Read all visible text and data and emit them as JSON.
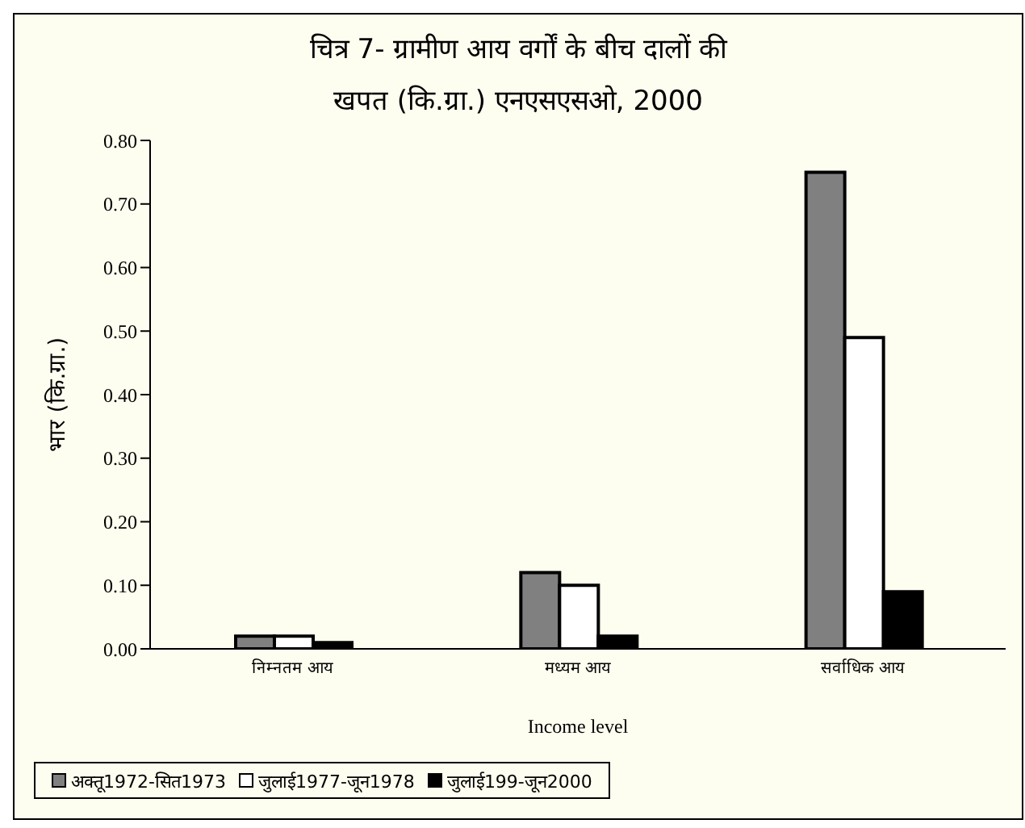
{
  "chart_data": {
    "type": "bar",
    "title": "चित्र 7- ग्रामीण आय वर्गों के बीच दालों की खपत (कि.ग्रा.) एनएसएसओ, 2000",
    "xlabel": "Income level",
    "ylabel": "भार (कि.ग्रा.)",
    "categories": [
      "निम्नतम आय",
      "मध्यम आय",
      "सर्वाधिक आय"
    ],
    "series": [
      {
        "name": "अक्तू1972-सित1973",
        "color": "#808080",
        "values": [
          0.02,
          0.12,
          0.75
        ]
      },
      {
        "name": "जुलाई1977-जून1978",
        "color": "#ffffff",
        "values": [
          0.02,
          0.1,
          0.49
        ]
      },
      {
        "name": "जुलाई199-जून2000",
        "color": "#000000",
        "values": [
          0.01,
          0.02,
          0.09
        ]
      }
    ],
    "ylim": [
      0,
      0.8
    ],
    "yticks": [
      {
        "value": 0,
        "label": "0.00"
      },
      {
        "value": 0.1,
        "label": "0.10"
      },
      {
        "value": 0.2,
        "label": "0.20"
      },
      {
        "value": 0.3,
        "label": "0.30"
      },
      {
        "value": 0.4,
        "label": "0.40"
      },
      {
        "value": 0.5,
        "label": "0.50"
      },
      {
        "value": 0.6,
        "label": "0.60"
      },
      {
        "value": 0.7,
        "label": "0.70"
      },
      {
        "value": 0.8,
        "label": "0.80"
      }
    ],
    "grid": false,
    "legend": "bottom"
  }
}
